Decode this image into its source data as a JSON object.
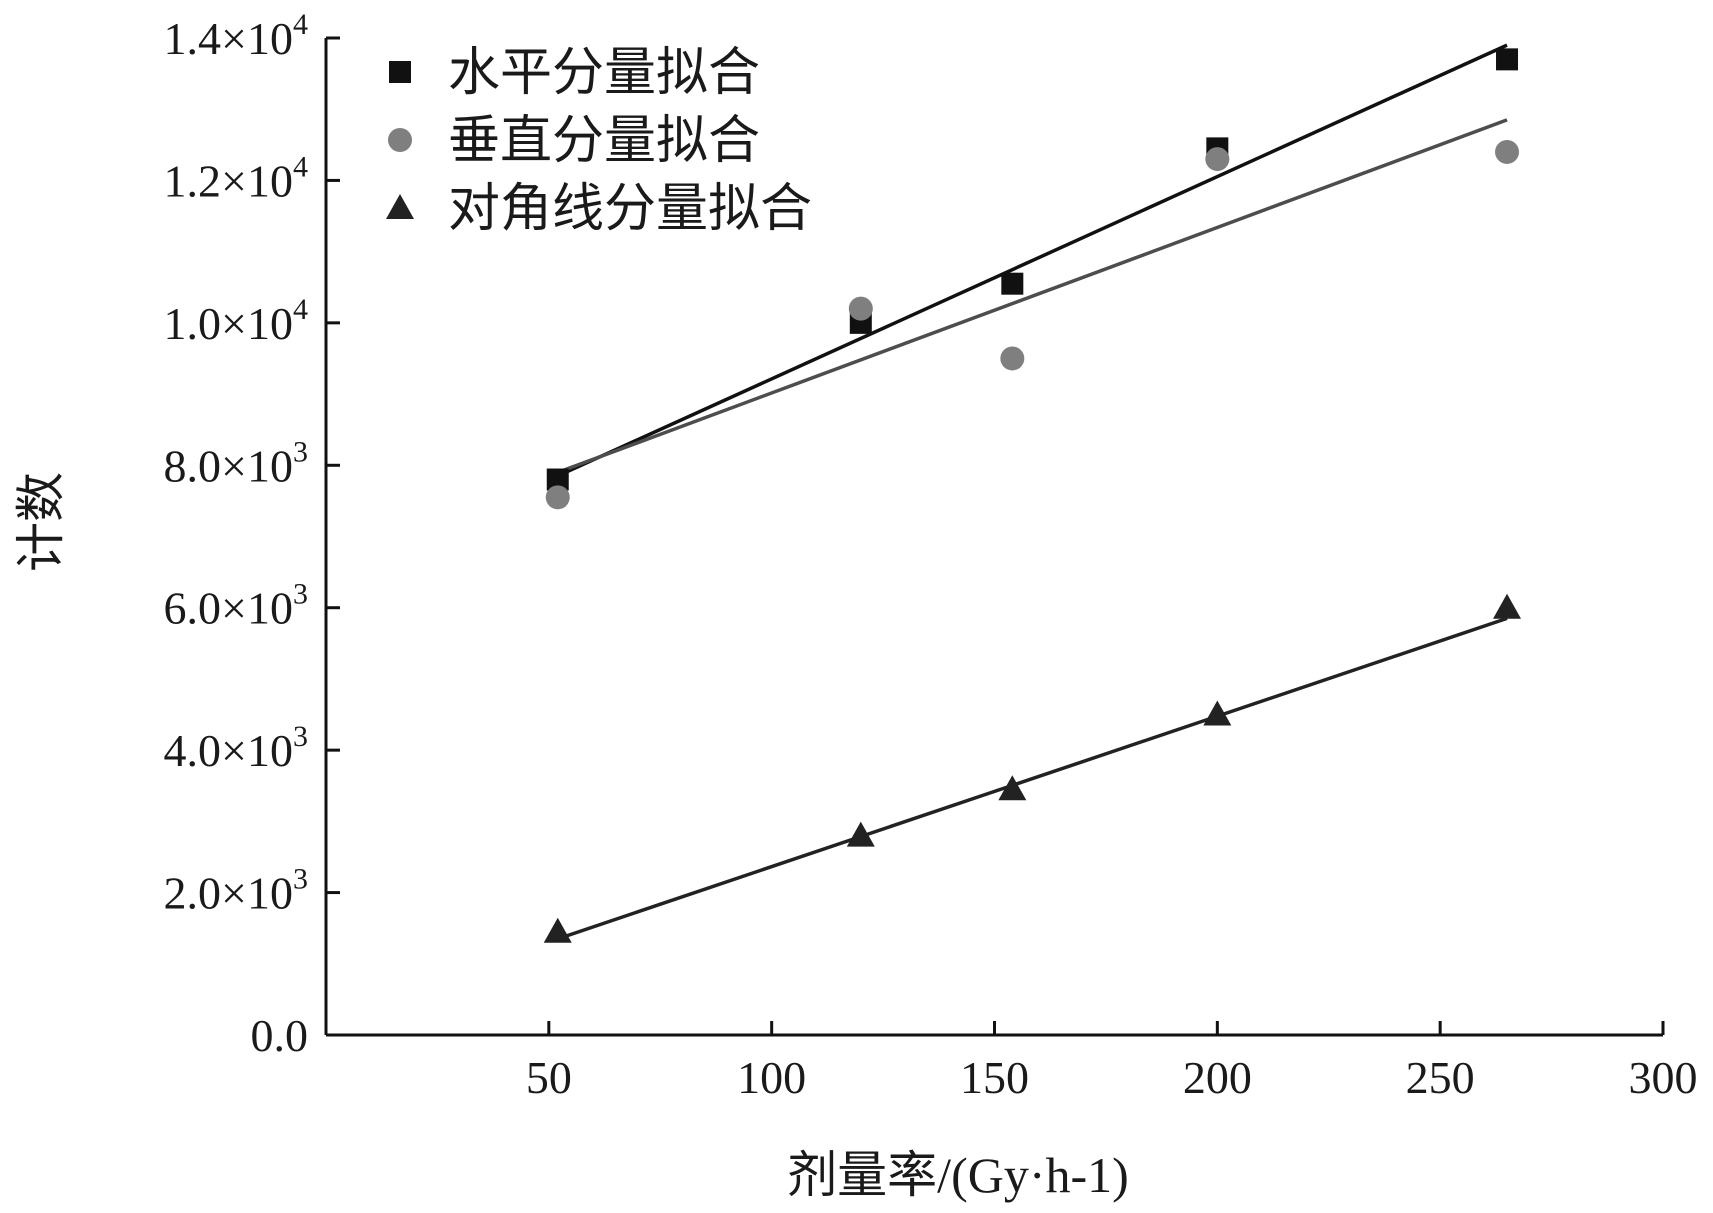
{
  "chart_data": {
    "type": "scatter",
    "xlabel": "剂量率/(Gy·h-1)",
    "ylabel": "计数",
    "xlim": [
      0,
      300
    ],
    "ylim": [
      0,
      14000
    ],
    "x_ticks": [
      50,
      100,
      150,
      200,
      250,
      300
    ],
    "x_tick_labels": [
      "50",
      "100",
      "150",
      "200",
      "250",
      "300"
    ],
    "y_ticks": [
      0,
      2000,
      4000,
      6000,
      8000,
      10000,
      12000,
      14000
    ],
    "y_tick_labels": [
      {
        "mantissa": "0.0",
        "exp": ""
      },
      {
        "mantissa": "2.0×10",
        "exp": "3"
      },
      {
        "mantissa": "4.0×10",
        "exp": "3"
      },
      {
        "mantissa": "6.0×10",
        "exp": "3"
      },
      {
        "mantissa": "8.0×10",
        "exp": "3"
      },
      {
        "mantissa": "1.0×10",
        "exp": "4"
      },
      {
        "mantissa": "1.2×10",
        "exp": "4"
      },
      {
        "mantissa": "1.4×10",
        "exp": "4"
      }
    ],
    "legend_position": "top-left",
    "grid": false,
    "series": [
      {
        "name": "水平分量拟合",
        "marker": "square",
        "color": "#111111",
        "line_color": "#111111",
        "x": [
          52,
          120,
          154,
          200,
          265
        ],
        "y": [
          7800,
          10000,
          10550,
          12450,
          13700
        ],
        "fit": {
          "x": [
            52,
            265
          ],
          "y": [
            7850,
            13900
          ]
        }
      },
      {
        "name": "垂直分量拟合",
        "marker": "circle",
        "color": "#7f7f7f",
        "line_color": "#4d4d4d",
        "x": [
          52,
          120,
          154,
          200,
          265
        ],
        "y": [
          7550,
          10200,
          9500,
          12300,
          12400
        ],
        "fit": {
          "x": [
            52,
            265
          ],
          "y": [
            7900,
            12850
          ]
        }
      },
      {
        "name": "对角线分量拟合",
        "marker": "triangle",
        "color": "#222222",
        "line_color": "#222222",
        "x": [
          52,
          120,
          154,
          200,
          265
        ],
        "y": [
          1450,
          2800,
          3450,
          4500,
          6000
        ],
        "fit": {
          "x": [
            52,
            265
          ],
          "y": [
            1350,
            5850
          ]
        }
      }
    ]
  }
}
